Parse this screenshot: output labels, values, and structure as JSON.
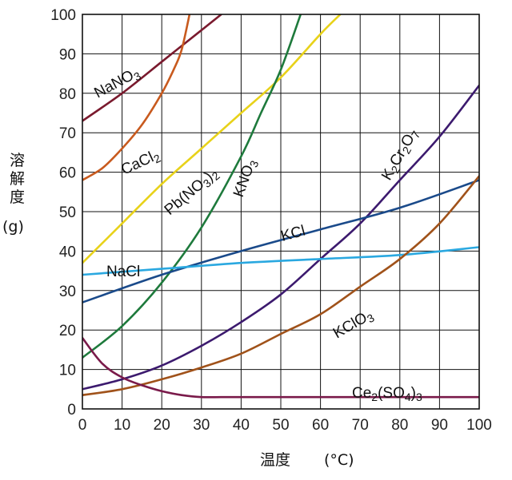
{
  "chart_data": {
    "type": "line",
    "xlabel": "温度　(°C)",
    "ylabel": "溶解度 (g)",
    "xlim": [
      0,
      100
    ],
    "ylim": [
      0,
      100
    ],
    "grid": true,
    "x_ticks": [
      "0",
      "10",
      "20",
      "30",
      "40",
      "50",
      "60",
      "70",
      "80",
      "90",
      "100"
    ],
    "y_ticks": [
      "0",
      "10",
      "20",
      "30",
      "40",
      "50",
      "60",
      "70",
      "80",
      "90",
      "100"
    ],
    "series": [
      {
        "name": "NaNO3",
        "color": "#7a1a2e",
        "x": [
          0,
          10,
          20,
          30,
          35
        ],
        "y": [
          73,
          80,
          88,
          96,
          100
        ]
      },
      {
        "name": "CaCl2",
        "color": "#c85a1e",
        "x": [
          0,
          5,
          10,
          15,
          20,
          23,
          25,
          27
        ],
        "y": [
          58,
          61,
          66,
          72,
          80,
          86,
          91,
          100
        ]
      },
      {
        "name": "Pb(NO3)2",
        "color": "#e8d21a",
        "x": [
          0,
          10,
          20,
          30,
          40,
          50,
          60,
          65
        ],
        "y": [
          37,
          47,
          57,
          66,
          75,
          84,
          95,
          100
        ]
      },
      {
        "name": "KNO3",
        "color": "#1e7a3c",
        "x": [
          0,
          10,
          20,
          30,
          40,
          45,
          50,
          55
        ],
        "y": [
          13,
          21,
          32,
          46,
          64,
          75,
          86,
          100
        ]
      },
      {
        "name": "K2Cr2O7",
        "color": "#3c1a6e",
        "x": [
          0,
          10,
          20,
          30,
          40,
          50,
          60,
          70,
          80,
          90,
          100
        ],
        "y": [
          5,
          7.5,
          11,
          16,
          22,
          29,
          38,
          47,
          58,
          69,
          82
        ]
      },
      {
        "name": "KCl",
        "color": "#1a4a8a",
        "x": [
          0,
          20,
          40,
          60,
          80,
          100
        ],
        "y": [
          27,
          34,
          40,
          45.5,
          51,
          58
        ]
      },
      {
        "name": "NaCl",
        "color": "#2aa8e0",
        "x": [
          0,
          20,
          40,
          60,
          80,
          100
        ],
        "y": [
          34,
          35.5,
          37,
          38,
          39,
          41
        ]
      },
      {
        "name": "KClO3",
        "color": "#a0521a",
        "x": [
          0,
          10,
          20,
          30,
          40,
          50,
          60,
          70,
          80,
          90,
          100
        ],
        "y": [
          3.5,
          5,
          7.5,
          10.5,
          14,
          19,
          24,
          31,
          38,
          47,
          59
        ]
      },
      {
        "name": "Ce2(SO4)3",
        "color": "#7a1a4a",
        "x": [
          0,
          5,
          10,
          15,
          20,
          25,
          30,
          35,
          40,
          60,
          80,
          100
        ],
        "y": [
          18,
          11.5,
          8,
          6,
          4.5,
          3.5,
          3,
          3,
          3,
          3,
          3,
          3
        ]
      }
    ]
  },
  "labels": {
    "NaNO3": [
      "NaNO",
      "3",
      ""
    ],
    "CaCl2": [
      "CaCl",
      "2",
      ""
    ],
    "PbNO32": [
      "Pb(NO",
      "3",
      ")",
      "2"
    ],
    "KNO3": [
      "KNO",
      "3",
      ""
    ],
    "K2Cr2O7": [
      "K",
      "2",
      "Cr",
      "2",
      "O",
      "7"
    ],
    "KCl": "KCl",
    "NaCl": "NaCl",
    "KClO3": [
      "KClO",
      "3",
      ""
    ],
    "Ce2SO43": [
      "Ce",
      "2",
      "(SO",
      "4",
      ")",
      "3"
    ]
  },
  "axis": {
    "y_title_chars": [
      "溶",
      "解",
      "度"
    ],
    "y_unit": "(g)",
    "x_title": "温度",
    "x_unit": "(°C)"
  }
}
